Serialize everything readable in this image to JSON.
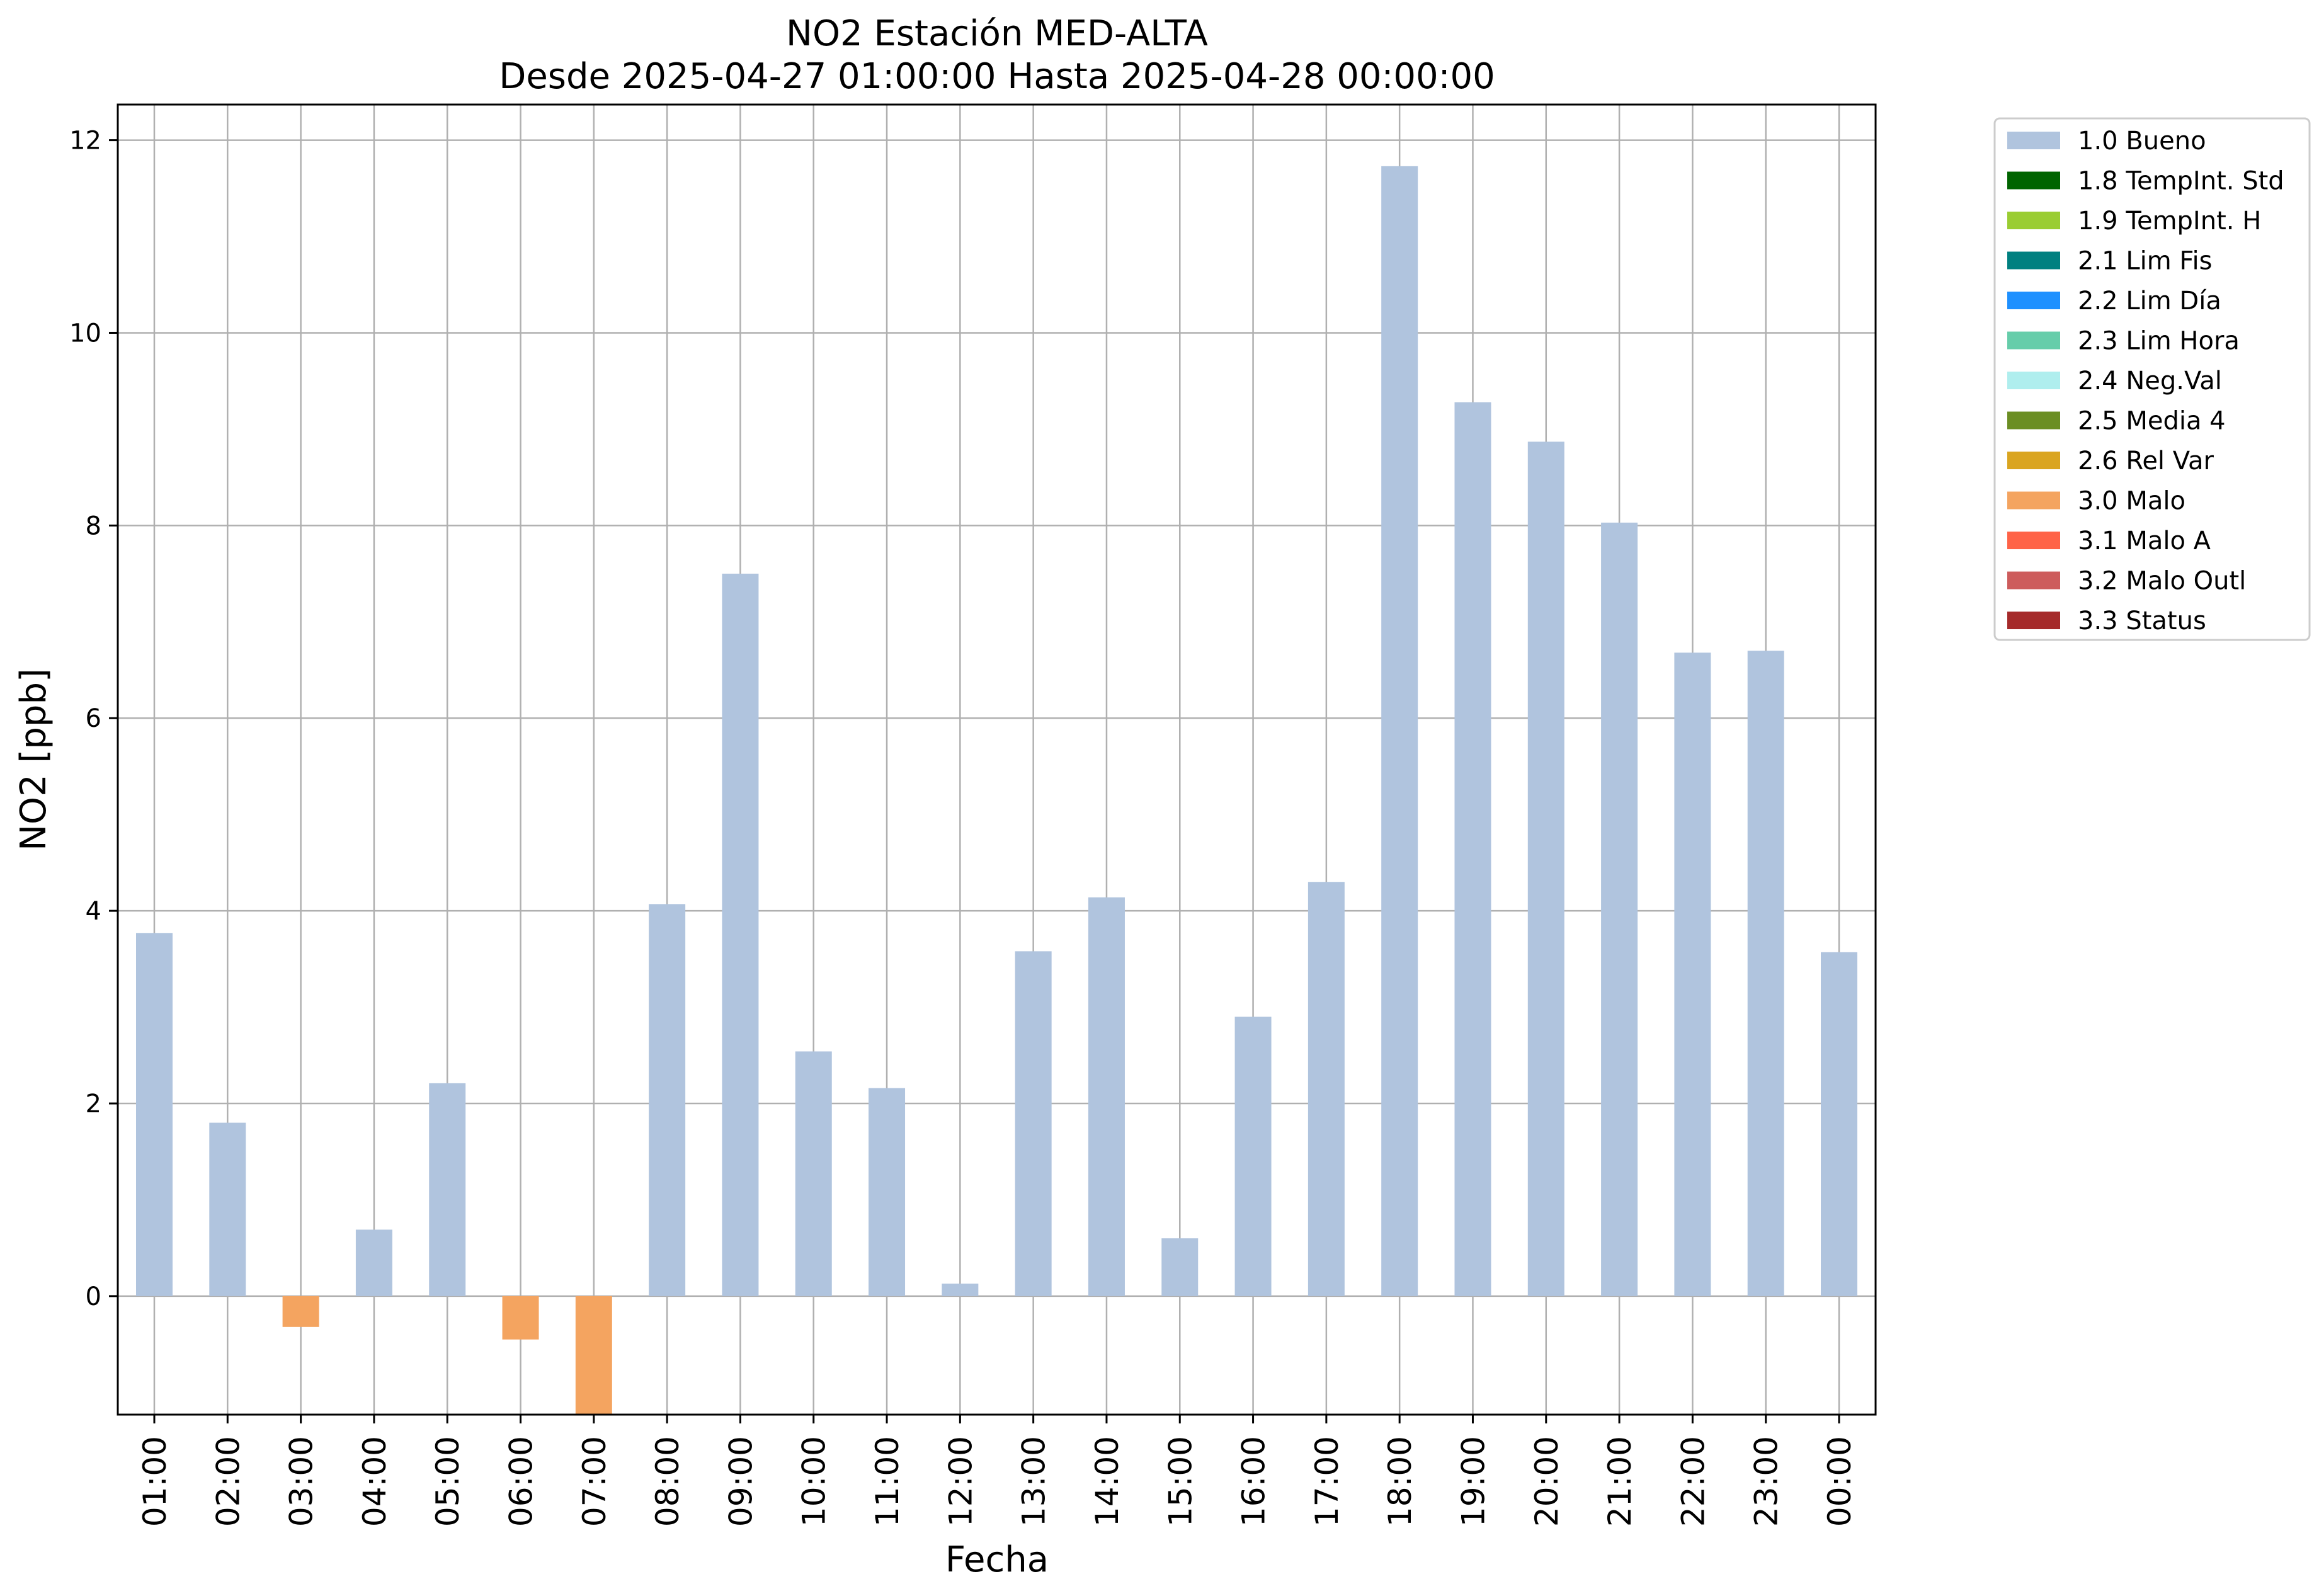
{
  "chart_data": {
    "type": "bar",
    "title": "NO2 Estación MED-ALTA",
    "subtitle": "Desde 2025-04-27 01:00:00 Hasta 2025-04-28 00:00:00",
    "xlabel": "Fecha",
    "ylabel": "NO2 [ppb]",
    "ylim": [
      -1.23,
      12.37
    ],
    "yticks": [
      0,
      2,
      4,
      6,
      8,
      10,
      12
    ],
    "grid": true,
    "legend_position": "outside-top-right",
    "categories": [
      "01:00",
      "02:00",
      "03:00",
      "04:00",
      "05:00",
      "06:00",
      "07:00",
      "08:00",
      "09:00",
      "10:00",
      "11:00",
      "12:00",
      "13:00",
      "14:00",
      "15:00",
      "16:00",
      "17:00",
      "18:00",
      "19:00",
      "20:00",
      "21:00",
      "22:00",
      "23:00",
      "00:00"
    ],
    "values": [
      3.77,
      1.8,
      -0.32,
      0.69,
      2.21,
      -0.45,
      -1.25,
      4.07,
      7.5,
      2.54,
      2.16,
      0.13,
      3.58,
      4.14,
      0.6,
      2.9,
      4.3,
      11.73,
      9.28,
      8.87,
      8.03,
      6.68,
      6.7,
      3.57
    ],
    "flags": [
      "1.0 Bueno",
      "1.0 Bueno",
      "3.0 Malo",
      "1.0 Bueno",
      "1.0 Bueno",
      "3.0 Malo",
      "3.0 Malo",
      "1.0 Bueno",
      "1.0 Bueno",
      "1.0 Bueno",
      "1.0 Bueno",
      "1.0 Bueno",
      "1.0 Bueno",
      "1.0 Bueno",
      "1.0 Bueno",
      "1.0 Bueno",
      "1.0 Bueno",
      "1.0 Bueno",
      "1.0 Bueno",
      "1.0 Bueno",
      "1.0 Bueno",
      "1.0 Bueno",
      "1.0 Bueno",
      "1.0 Bueno"
    ],
    "legend": [
      {
        "label": "1.0 Bueno",
        "color": "#b0c4de"
      },
      {
        "label": "1.8 TempInt. Std",
        "color": "#006400"
      },
      {
        "label": "1.9 TempInt. H",
        "color": "#9acd32"
      },
      {
        "label": "2.1 Lim Fis",
        "color": "#008080"
      },
      {
        "label": "2.2 Lim Día",
        "color": "#1e90ff"
      },
      {
        "label": "2.3 Lim Hora",
        "color": "#66cdaa"
      },
      {
        "label": "2.4 Neg.Val",
        "color": "#afeeee"
      },
      {
        "label": "2.5 Media 4",
        "color": "#6b8e23"
      },
      {
        "label": "2.6 Rel Var",
        "color": "#daa520"
      },
      {
        "label": "3.0 Malo",
        "color": "#f4a460"
      },
      {
        "label": "3.1 Malo A",
        "color": "#ff6347"
      },
      {
        "label": "3.2 Malo Outl",
        "color": "#cd5c5c"
      },
      {
        "label": "3.3 Status",
        "color": "#a52a2a"
      }
    ]
  }
}
